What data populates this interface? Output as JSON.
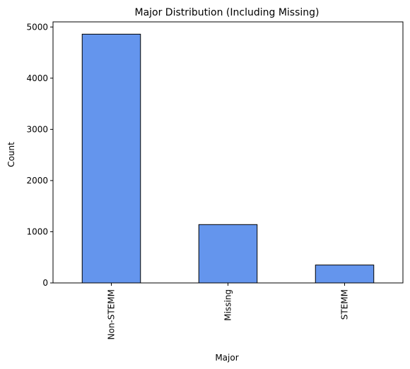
{
  "chart_data": {
    "type": "bar",
    "title": "Major Distribution (Including Missing)",
    "xlabel": "Major",
    "ylabel": "Count",
    "categories": [
      "Non-STEMM",
      "Missing",
      "STEMM"
    ],
    "values": [
      4860,
      1140,
      350
    ],
    "ylim": [
      0,
      5100
    ],
    "yticks": [
      0,
      1000,
      2000,
      3000,
      4000,
      5000
    ],
    "grid": false,
    "legend": "none",
    "bar_color": "#6495ED",
    "edge_color": "#000000"
  }
}
